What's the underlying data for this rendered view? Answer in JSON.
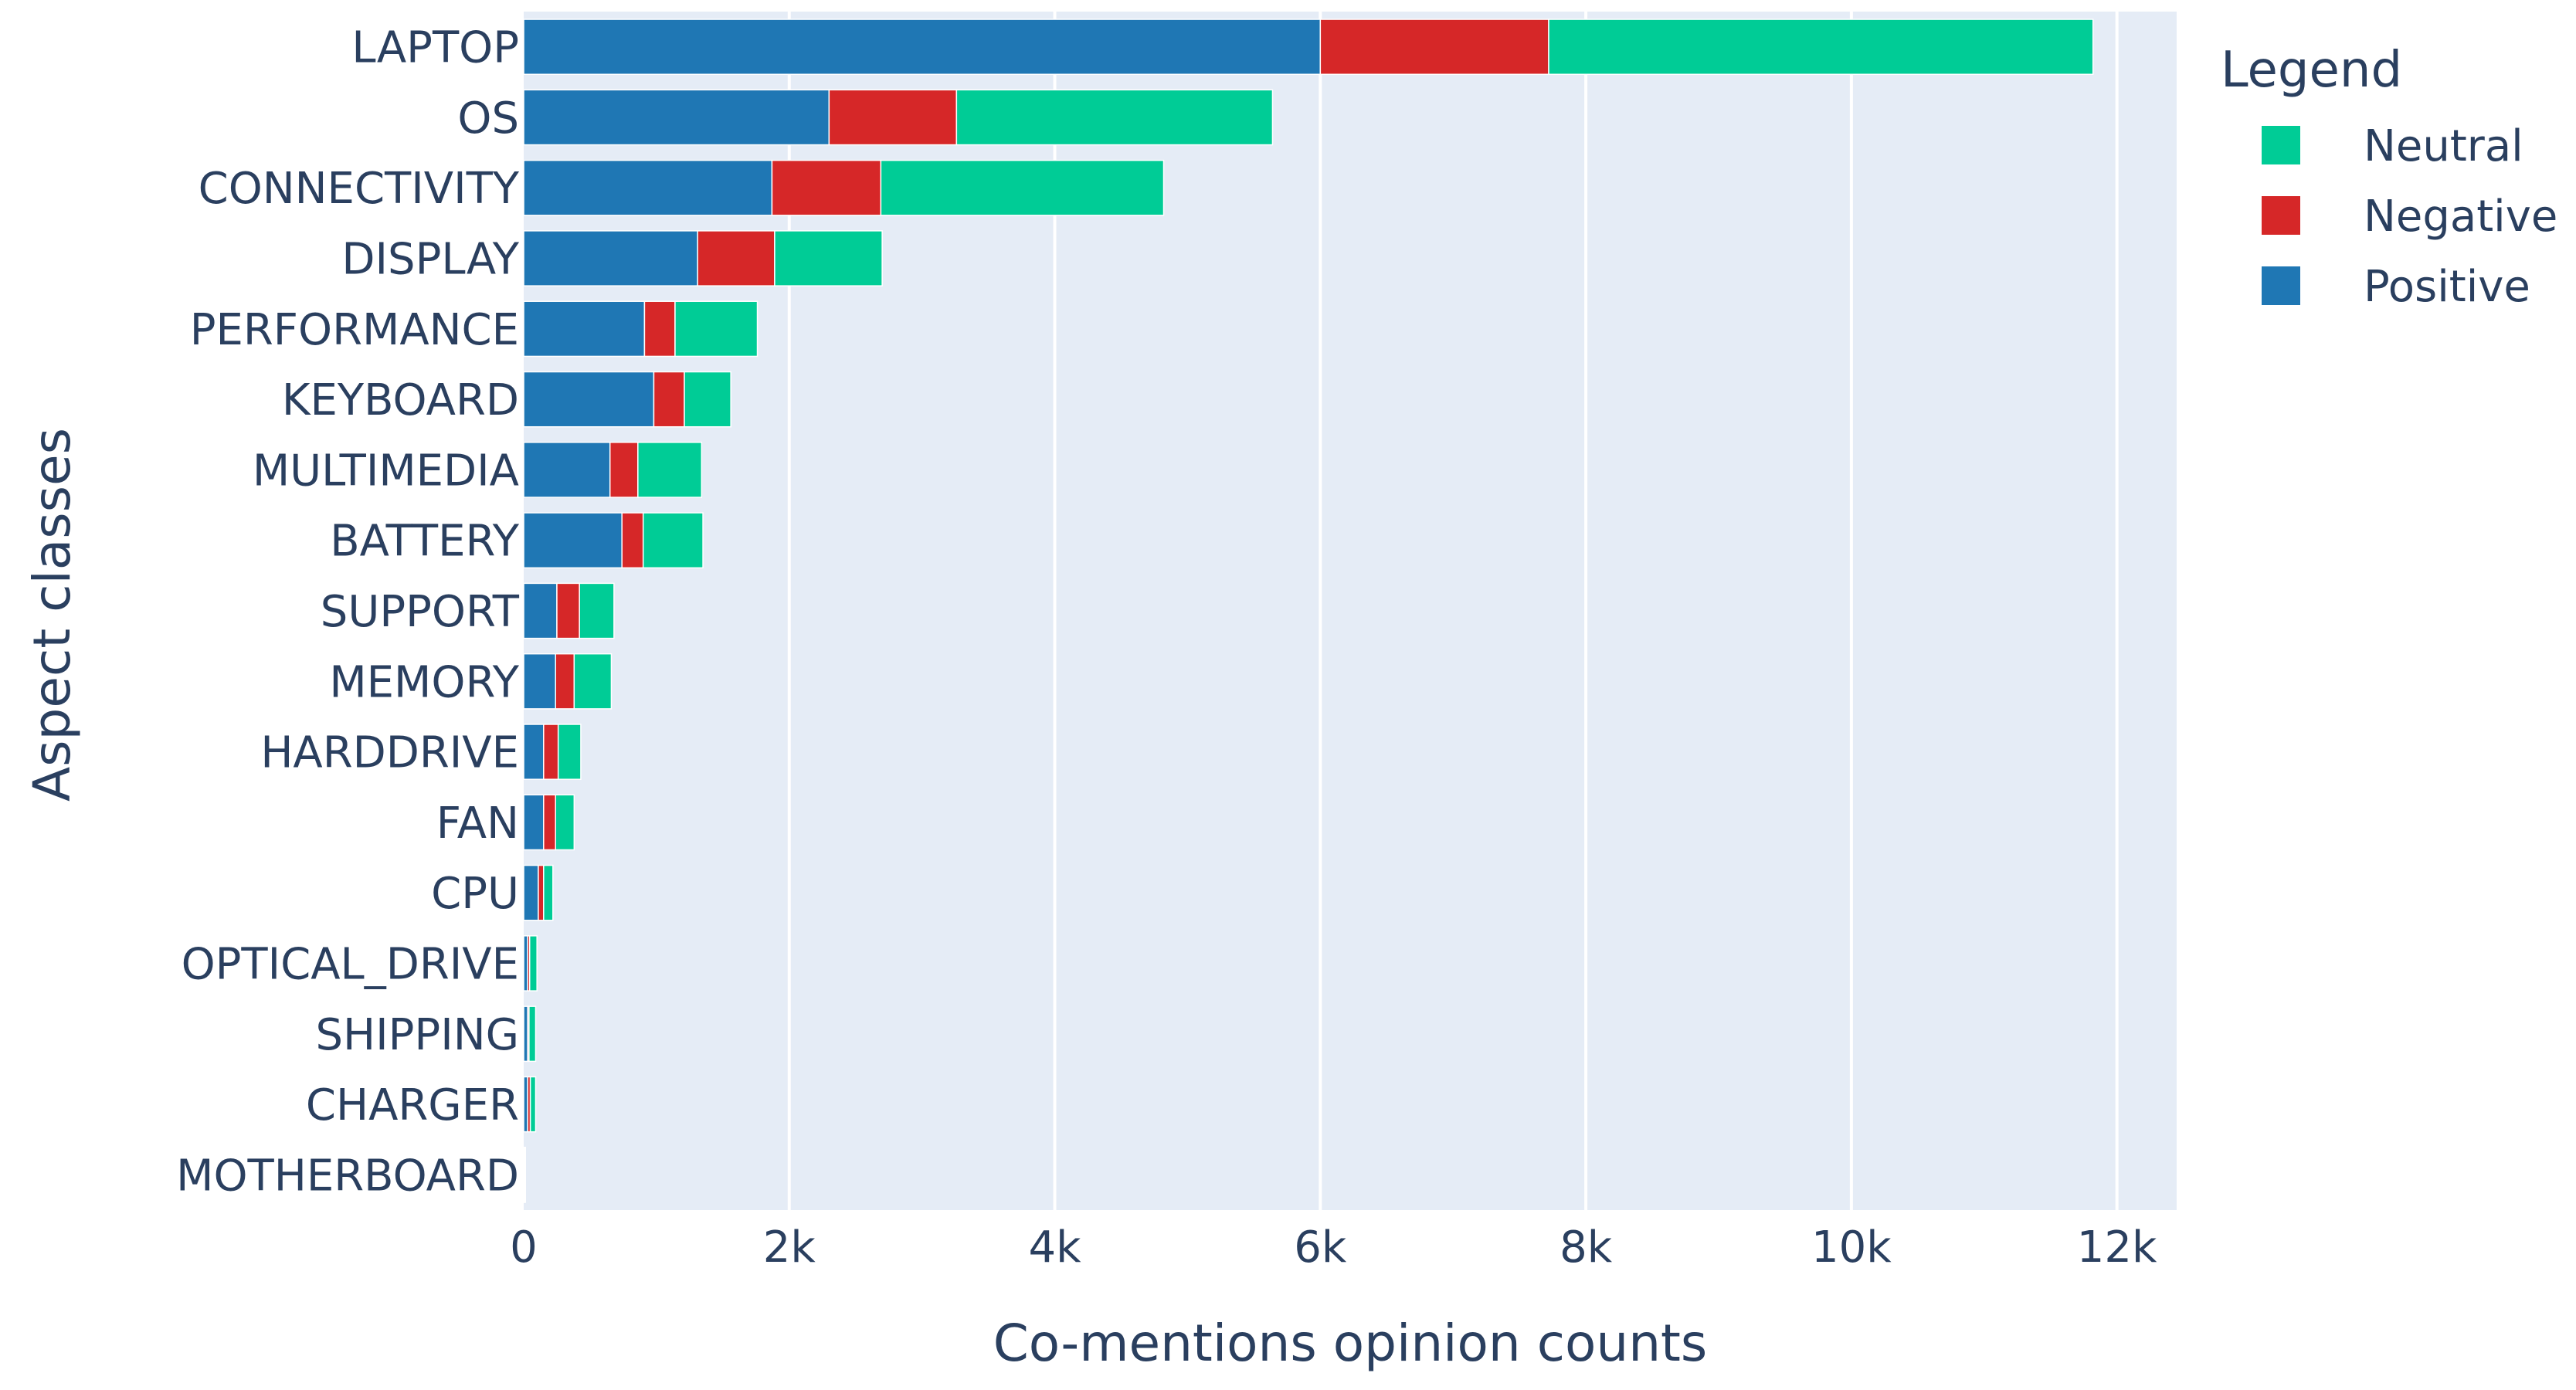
{
  "chart_data": {
    "type": "bar",
    "orientation": "horizontal",
    "stacked": true,
    "title": "",
    "xlabel": "Co-mentions opinion counts",
    "ylabel": "Aspect classes",
    "xlim": [
      0,
      12450
    ],
    "x_ticks": [
      0,
      2000,
      4000,
      6000,
      8000,
      10000,
      12000
    ],
    "x_tick_labels": [
      "0",
      "2k",
      "4k",
      "6k",
      "8k",
      "10k",
      "12k"
    ],
    "grid": true,
    "categories": [
      "LAPTOP",
      "OS",
      "CONNECTIVITY",
      "DISPLAY",
      "PERFORMANCE",
      "KEYBOARD",
      "MULTIMEDIA",
      "BATTERY",
      "SUPPORT",
      "MEMORY",
      "HARDDRIVE",
      "FAN",
      "CPU",
      "OPTICAL_DRIVE",
      "SHIPPING",
      "CHARGER",
      "MOTHERBOARD"
    ],
    "series": [
      {
        "name": "Positive",
        "color": "#1f77b4",
        "values": [
          6000,
          2300,
          1870,
          1310,
          910,
          980,
          650,
          740,
          250,
          240,
          150,
          150,
          110,
          30,
          30,
          30,
          5
        ]
      },
      {
        "name": "Negative",
        "color": "#d62728",
        "values": [
          1720,
          960,
          820,
          580,
          230,
          230,
          210,
          160,
          170,
          140,
          110,
          90,
          40,
          15,
          10,
          20,
          3
        ]
      },
      {
        "name": "Neutral",
        "color": "#00cc96",
        "values": [
          4100,
          2380,
          2130,
          810,
          620,
          350,
          480,
          450,
          260,
          280,
          170,
          140,
          70,
          55,
          50,
          40,
          5
        ]
      }
    ],
    "legend": {
      "title": "Legend",
      "position": "top-right",
      "order": [
        "Neutral",
        "Negative",
        "Positive"
      ]
    }
  }
}
